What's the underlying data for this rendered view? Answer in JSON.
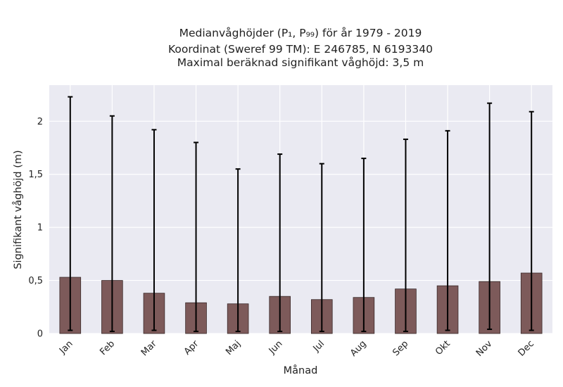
{
  "chart_data": {
    "type": "bar",
    "title_lines": [
      "Medianvåghöjder (P₁, P₉₉) för år 1979 - 2019",
      "Koordinat (Sweref 99 TM): E 246785, N 6193340",
      "Maximal beräknad signifikant våghöjd: 3,5 m"
    ],
    "xlabel": "Månad",
    "ylabel": "Signifikant våghöjd (m)",
    "categories": [
      "Jan",
      "Feb",
      "Mar",
      "Apr",
      "Maj",
      "Jun",
      "Jul",
      "Aug",
      "Sep",
      "Okt",
      "Nov",
      "Dec"
    ],
    "values": [
      0.53,
      0.5,
      0.38,
      0.29,
      0.28,
      0.35,
      0.32,
      0.34,
      0.42,
      0.45,
      0.49,
      0.57
    ],
    "error_low": [
      0.03,
      0.02,
      0.03,
      0.02,
      0.02,
      0.02,
      0.02,
      0.02,
      0.02,
      0.03,
      0.04,
      0.03
    ],
    "error_high": [
      2.23,
      2.05,
      1.92,
      1.8,
      1.55,
      1.69,
      1.6,
      1.65,
      1.83,
      1.91,
      2.17,
      2.09
    ],
    "yticks": [
      0,
      0.5,
      1,
      1.5,
      2
    ],
    "ytick_labels": [
      "0",
      "0,5",
      "1",
      "1,5",
      "2"
    ],
    "ylim": [
      0,
      2.34
    ],
    "grid": true,
    "colors": {
      "bar": "#7d5a5a",
      "bar_edge": "#3a2a2a",
      "errorbar": "#000000",
      "plot_background": "#eaeaf2",
      "grid": "#ffffff"
    }
  }
}
